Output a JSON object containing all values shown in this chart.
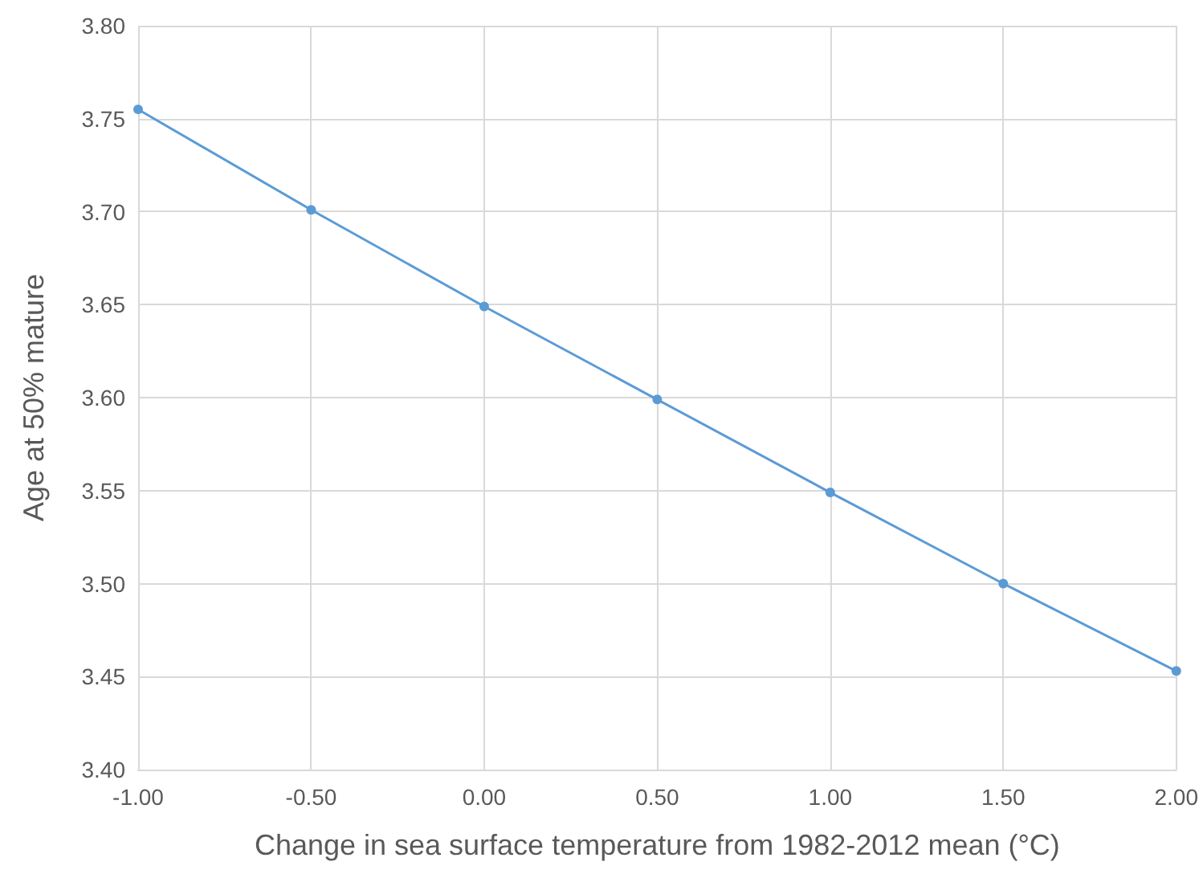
{
  "chart_data": {
    "type": "line",
    "xlabel": "Change in sea surface temperature from 1982-2012 mean (°C)",
    "ylabel": "Age at 50% mature",
    "x": [
      -1,
      -0.5,
      0,
      0.5,
      1,
      1.5,
      2
    ],
    "series": [
      {
        "color": "#5b9bd5",
        "values": [
          3.755,
          3.701,
          3.649,
          3.599,
          3.549,
          3.5,
          3.453
        ]
      }
    ],
    "xlim": [
      -1,
      2
    ],
    "xticks": [
      {
        "value": -1,
        "label": "-1.00"
      },
      {
        "value": -0.5,
        "label": "-0.50"
      },
      {
        "value": 0,
        "label": "0.00"
      },
      {
        "value": 0.5,
        "label": "0.50"
      },
      {
        "value": 1,
        "label": "1.00"
      },
      {
        "value": 1.5,
        "label": "1.50"
      },
      {
        "value": 2,
        "label": "2.00"
      }
    ],
    "ylim": [
      3.4,
      3.8
    ],
    "yticks": [
      {
        "value": 3.4,
        "label": "3.40"
      },
      {
        "value": 3.45,
        "label": "3.45"
      },
      {
        "value": 3.5,
        "label": "3.50"
      },
      {
        "value": 3.55,
        "label": "3.55"
      },
      {
        "value": 3.6,
        "label": "3.60"
      },
      {
        "value": 3.65,
        "label": "3.65"
      },
      {
        "value": 3.7,
        "label": "3.70"
      },
      {
        "value": 3.75,
        "label": "3.75"
      },
      {
        "value": 3.8,
        "label": "3.80"
      }
    ],
    "grid": true,
    "marker": "circle",
    "line_style": "solid"
  }
}
